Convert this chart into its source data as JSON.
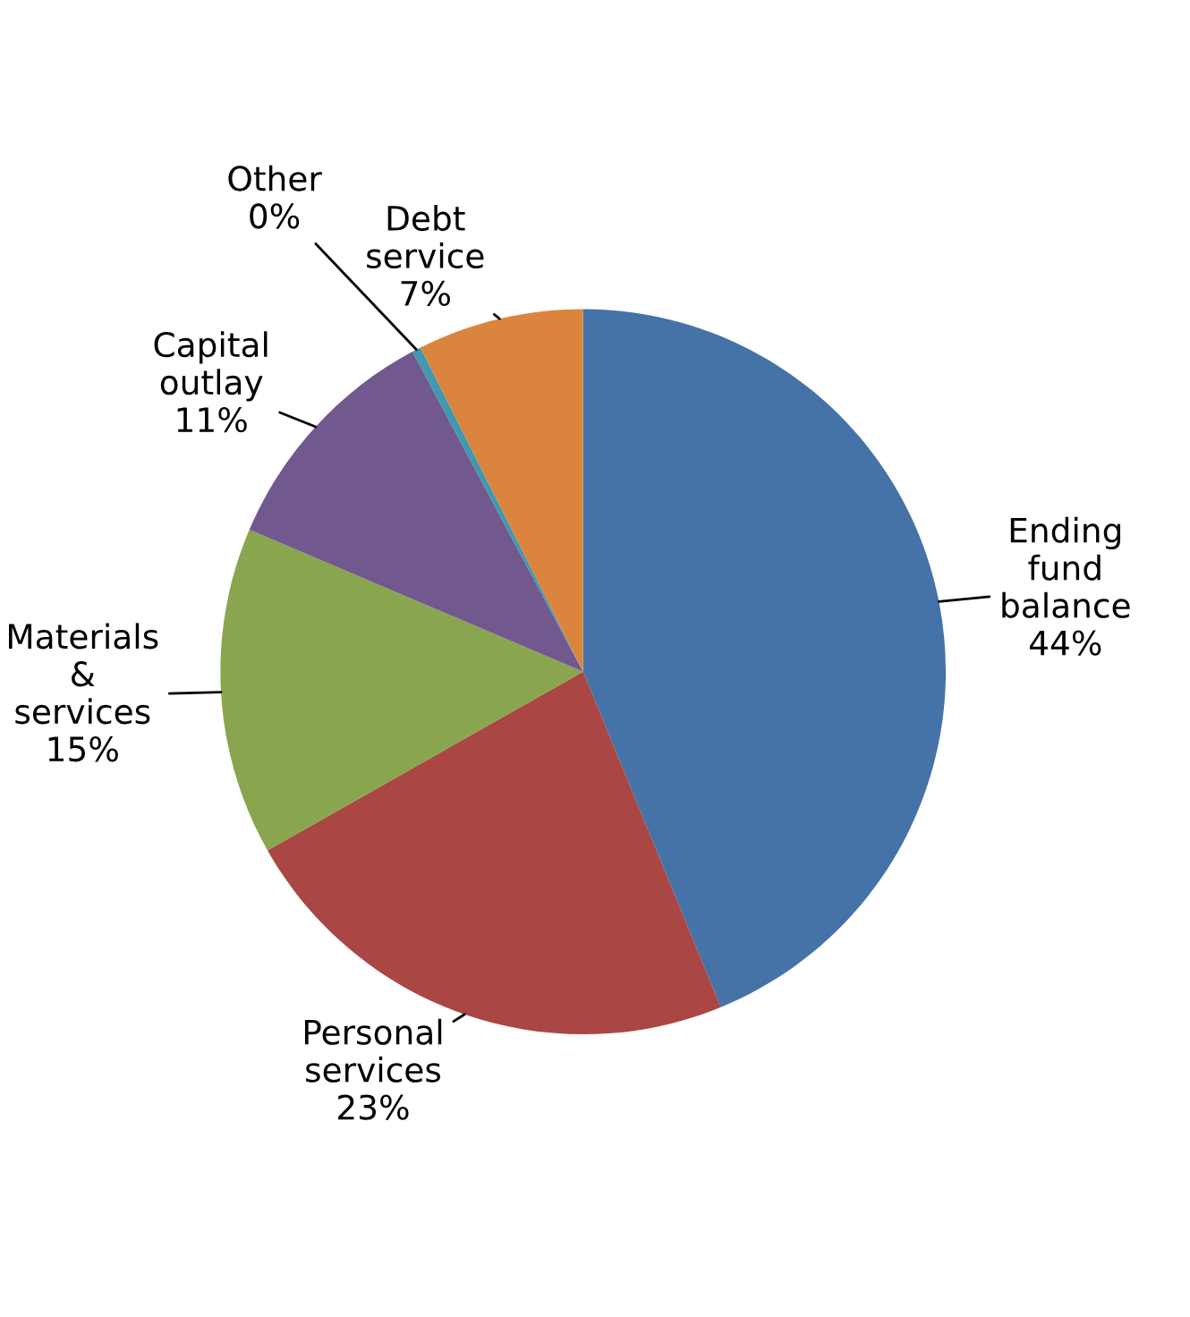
{
  "chart_data": {
    "type": "pie",
    "categories": [
      "Ending\nfund\nbalance",
      "Personal\nservices",
      "Materials\n&\nservices",
      "Capital\noutlay",
      "Other",
      "Debt\nservice"
    ],
    "values": [
      43.8,
      23.0,
      14.6,
      10.8,
      0.4,
      7.4
    ],
    "value_labels": [
      "44%",
      "23%",
      "15%",
      "11%",
      "0%",
      "7%"
    ],
    "colors": [
      "#4572a7",
      "#aa4643",
      "#89a54e",
      "#71588f",
      "#4198af",
      "#db843d"
    ],
    "legend": false
  }
}
